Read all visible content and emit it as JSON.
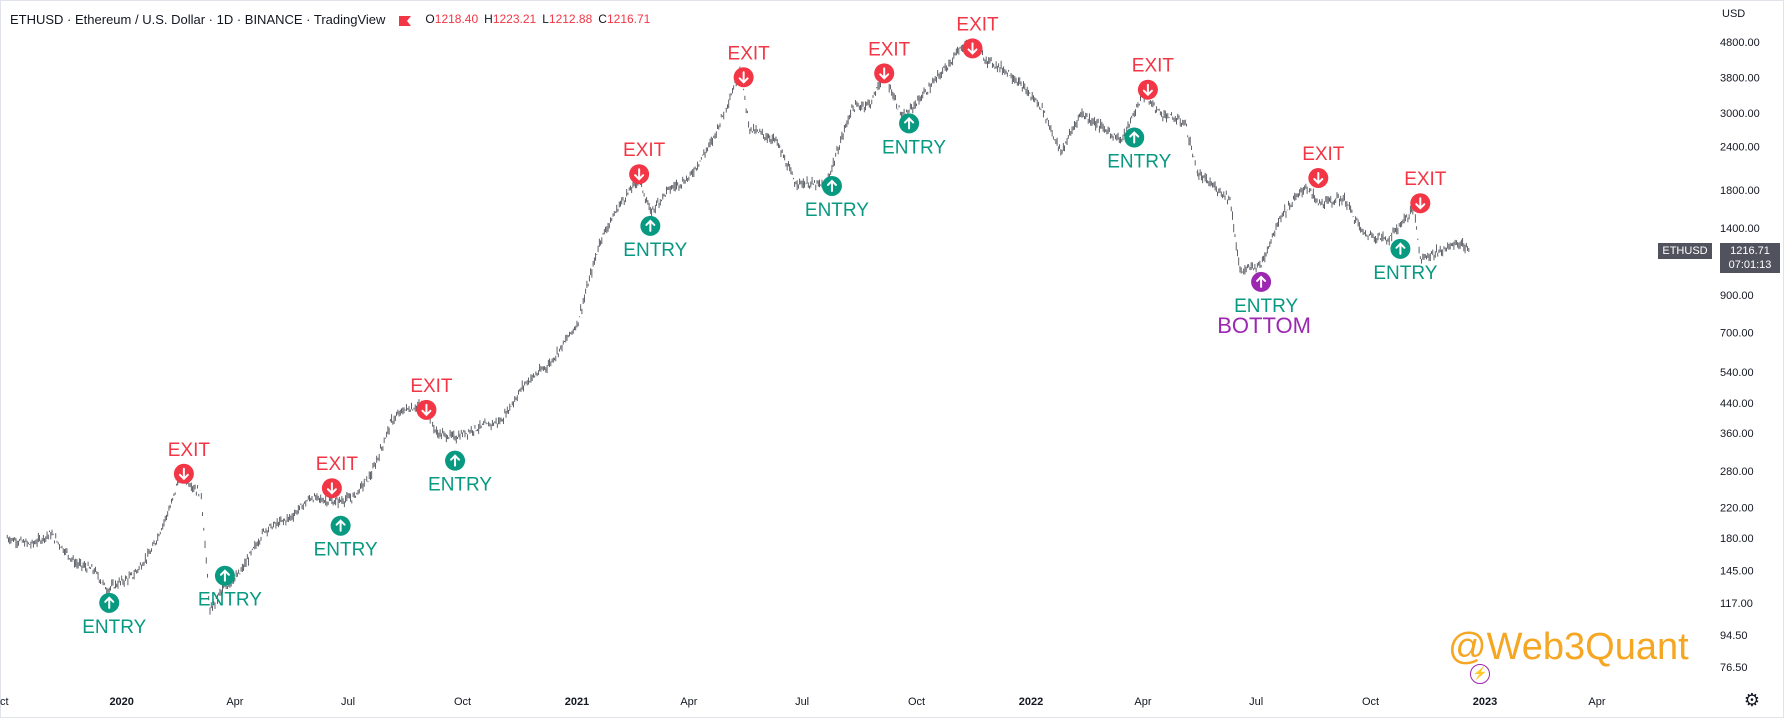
{
  "header": {
    "symbol_line": "ETHUSD · Ethereum / U.S. Dollar · 1D · BINANCE · TradingView",
    "ohlc": [
      {
        "k": "O",
        "v": "1218.40"
      },
      {
        "k": "H",
        "v": "1223.21"
      },
      {
        "k": "L",
        "v": "1212.88"
      },
      {
        "k": "C",
        "v": "1216.71"
      }
    ]
  },
  "currency": "USD",
  "price_tag": {
    "price": "1216.71",
    "countdown": "07:01:13",
    "symbol": "ETHUSD"
  },
  "watermark": "@Web3Quant",
  "colors": {
    "up_candle": "#131722",
    "exit": "#f23645",
    "entry": "#089981",
    "bottom": "#9c27b0",
    "watermark": "#f5a623",
    "price_tag_bg": "#50535e"
  },
  "icons": {
    "settings": "gear-icon",
    "bolt": "bolt-icon",
    "exit": "arrow-down-circle-icon",
    "entry": "arrow-up-circle-icon"
  },
  "chart_data": {
    "type": "line",
    "scale": "log",
    "grid": false,
    "y_ticks": [
      "76.50",
      "94.50",
      "117.00",
      "145.00",
      "180.00",
      "220.00",
      "280.00",
      "360.00",
      "440.00",
      "540.00",
      "700.00",
      "900.00",
      "1400.00",
      "1800.00",
      "2400.00",
      "3000.00",
      "3800.00",
      "4800.00"
    ],
    "x_ticks": [
      {
        "label": "ct",
        "major": false
      },
      {
        "label": "2020",
        "major": true
      },
      {
        "label": "Apr",
        "major": false
      },
      {
        "label": "Jul",
        "major": false
      },
      {
        "label": "Oct",
        "major": false
      },
      {
        "label": "2021",
        "major": true
      },
      {
        "label": "Apr",
        "major": false
      },
      {
        "label": "Jul",
        "major": false
      },
      {
        "label": "Oct",
        "major": false
      },
      {
        "label": "2022",
        "major": true
      },
      {
        "label": "Apr",
        "major": false
      },
      {
        "label": "Jul",
        "major": false
      },
      {
        "label": "Oct",
        "major": false
      },
      {
        "label": "2023",
        "major": true
      },
      {
        "label": "Apr",
        "major": false
      }
    ],
    "series": [
      {
        "values": [
          {
            "x": "2019-10-01",
            "y": 180
          },
          {
            "x": "2019-10-20",
            "y": 172
          },
          {
            "x": "2019-11-05",
            "y": 185
          },
          {
            "x": "2019-11-25",
            "y": 152
          },
          {
            "x": "2019-12-10",
            "y": 145
          },
          {
            "x": "2019-12-20",
            "y": 128
          },
          {
            "x": "2020-01-10",
            "y": 140
          },
          {
            "x": "2020-01-25",
            "y": 165
          },
          {
            "x": "2020-02-10",
            "y": 225
          },
          {
            "x": "2020-02-17",
            "y": 275
          },
          {
            "x": "2020-03-05",
            "y": 240
          },
          {
            "x": "2020-03-12",
            "y": 110
          },
          {
            "x": "2020-03-20",
            "y": 125
          },
          {
            "x": "2020-04-05",
            "y": 142
          },
          {
            "x": "2020-04-25",
            "y": 190
          },
          {
            "x": "2020-05-15",
            "y": 205
          },
          {
            "x": "2020-06-01",
            "y": 235
          },
          {
            "x": "2020-06-20",
            "y": 228
          },
          {
            "x": "2020-07-05",
            "y": 235
          },
          {
            "x": "2020-07-20",
            "y": 275
          },
          {
            "x": "2020-08-05",
            "y": 390
          },
          {
            "x": "2020-08-15",
            "y": 420
          },
          {
            "x": "2020-09-01",
            "y": 435
          },
          {
            "x": "2020-09-10",
            "y": 360
          },
          {
            "x": "2020-09-25",
            "y": 350
          },
          {
            "x": "2020-10-10",
            "y": 370
          },
          {
            "x": "2020-11-01",
            "y": 390
          },
          {
            "x": "2020-11-20",
            "y": 500
          },
          {
            "x": "2020-12-10",
            "y": 570
          },
          {
            "x": "2021-01-01",
            "y": 740
          },
          {
            "x": "2021-01-20",
            "y": 1300
          },
          {
            "x": "2021-02-05",
            "y": 1650
          },
          {
            "x": "2021-02-20",
            "y": 1950
          },
          {
            "x": "2021-03-01",
            "y": 1550
          },
          {
            "x": "2021-03-15",
            "y": 1800
          },
          {
            "x": "2021-04-01",
            "y": 1950
          },
          {
            "x": "2021-04-20",
            "y": 2500
          },
          {
            "x": "2021-05-05",
            "y": 3400
          },
          {
            "x": "2021-05-12",
            "y": 4000
          },
          {
            "x": "2021-05-20",
            "y": 2700
          },
          {
            "x": "2021-06-10",
            "y": 2500
          },
          {
            "x": "2021-06-25",
            "y": 1900
          },
          {
            "x": "2021-07-20",
            "y": 1850
          },
          {
            "x": "2021-08-10",
            "y": 3100
          },
          {
            "x": "2021-08-25",
            "y": 3200
          },
          {
            "x": "2021-09-05",
            "y": 3900
          },
          {
            "x": "2021-09-20",
            "y": 2900
          },
          {
            "x": "2021-10-10",
            "y": 3500
          },
          {
            "x": "2021-11-10",
            "y": 4800
          },
          {
            "x": "2021-11-25",
            "y": 4300
          },
          {
            "x": "2021-12-15",
            "y": 3900
          },
          {
            "x": "2022-01-10",
            "y": 3100
          },
          {
            "x": "2022-01-25",
            "y": 2300
          },
          {
            "x": "2022-02-10",
            "y": 3000
          },
          {
            "x": "2022-03-01",
            "y": 2700
          },
          {
            "x": "2022-03-15",
            "y": 2500
          },
          {
            "x": "2022-04-01",
            "y": 3400
          },
          {
            "x": "2022-04-15",
            "y": 3000
          },
          {
            "x": "2022-05-05",
            "y": 2800
          },
          {
            "x": "2022-05-15",
            "y": 2000
          },
          {
            "x": "2022-06-10",
            "y": 1700
          },
          {
            "x": "2022-06-18",
            "y": 1050
          },
          {
            "x": "2022-07-05",
            "y": 1100
          },
          {
            "x": "2022-07-20",
            "y": 1500
          },
          {
            "x": "2022-08-10",
            "y": 1850
          },
          {
            "x": "2022-08-20",
            "y": 1650
          },
          {
            "x": "2022-09-10",
            "y": 1700
          },
          {
            "x": "2022-09-25",
            "y": 1350
          },
          {
            "x": "2022-10-15",
            "y": 1300
          },
          {
            "x": "2022-11-05",
            "y": 1600
          },
          {
            "x": "2022-11-10",
            "y": 1150
          },
          {
            "x": "2022-11-25",
            "y": 1200
          },
          {
            "x": "2022-12-10",
            "y": 1270
          },
          {
            "x": "2022-12-20",
            "y": 1216.71
          }
        ]
      }
    ],
    "signals": [
      {
        "type": "entry",
        "label": "ENTRY",
        "x": "2019-12-22",
        "y": 117
      },
      {
        "type": "exit",
        "label": "EXIT",
        "x": "2020-02-20",
        "y": 275
      },
      {
        "type": "entry",
        "label": "ENTRY",
        "x": "2020-03-24",
        "y": 140
      },
      {
        "type": "exit",
        "label": "EXIT",
        "x": "2020-06-18",
        "y": 250
      },
      {
        "type": "entry",
        "label": "ENTRY",
        "x": "2020-06-25",
        "y": 195
      },
      {
        "type": "exit",
        "label": "EXIT",
        "x": "2020-09-02",
        "y": 420
      },
      {
        "type": "entry",
        "label": "ENTRY",
        "x": "2020-09-25",
        "y": 300
      },
      {
        "type": "exit",
        "label": "EXIT",
        "x": "2021-02-20",
        "y": 2000
      },
      {
        "type": "entry",
        "label": "ENTRY",
        "x": "2021-03-01",
        "y": 1420
      },
      {
        "type": "exit",
        "label": "EXIT",
        "x": "2021-05-15",
        "y": 3800
      },
      {
        "type": "entry",
        "label": "ENTRY",
        "x": "2021-07-25",
        "y": 1850
      },
      {
        "type": "exit",
        "label": "EXIT",
        "x": "2021-09-05",
        "y": 3900
      },
      {
        "type": "entry",
        "label": "ENTRY",
        "x": "2021-09-25",
        "y": 2800
      },
      {
        "type": "exit",
        "label": "EXIT",
        "x": "2021-11-15",
        "y": 4600
      },
      {
        "type": "entry",
        "label": "ENTRY",
        "x": "2022-03-25",
        "y": 2550
      },
      {
        "type": "exit",
        "label": "EXIT",
        "x": "2022-04-05",
        "y": 3500
      },
      {
        "type": "bottom",
        "label": "ENTRY",
        "label2": "BOTTOM",
        "x": "2022-07-05",
        "y": 980
      },
      {
        "type": "exit",
        "label": "EXIT",
        "x": "2022-08-20",
        "y": 1950
      },
      {
        "type": "entry",
        "label": "ENTRY",
        "x": "2022-10-25",
        "y": 1220
      },
      {
        "type": "exit",
        "label": "EXIT",
        "x": "2022-11-10",
        "y": 1650
      }
    ]
  }
}
